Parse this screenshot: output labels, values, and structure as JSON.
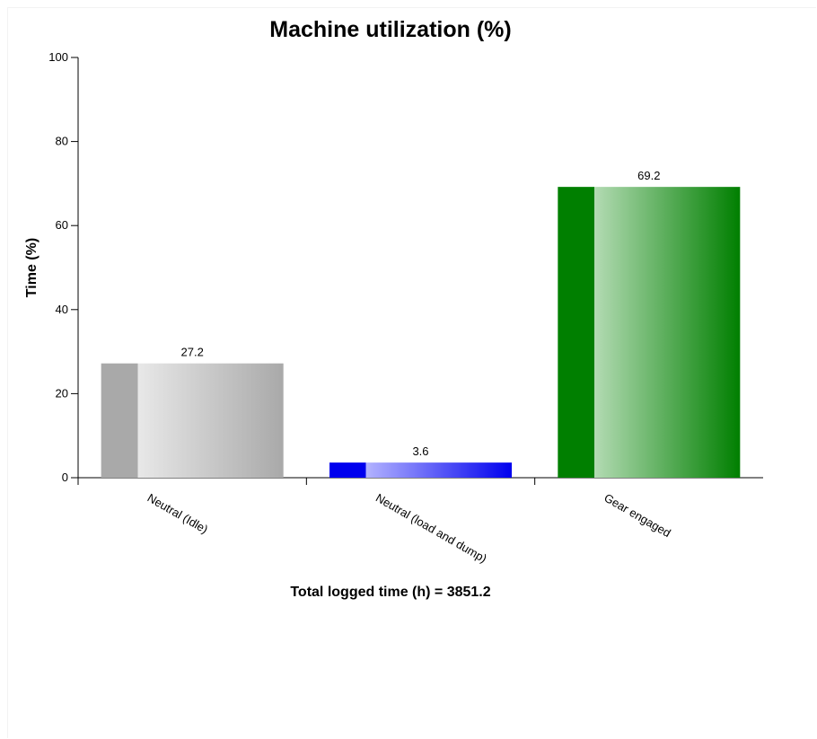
{
  "chart_data": {
    "type": "bar",
    "title": "Machine utilization (%)",
    "ylabel": "Time (%)",
    "xlabel": "Total logged time (h) = 3851.2",
    "categories": [
      "Neutral (Idle)",
      "Neutral (load and dump)",
      "Gear engaged"
    ],
    "values": [
      27.2,
      3.6,
      69.2
    ],
    "value_labels": [
      "27.2",
      "3.6",
      "69.2"
    ],
    "ylim": [
      0,
      100
    ],
    "yticks": [
      0,
      20,
      40,
      60,
      80,
      100
    ],
    "ytick_labels": [
      "0",
      "20",
      "40",
      "60",
      "80",
      "100"
    ],
    "grid": false,
    "legend": "none",
    "colors": [
      {
        "dark": "#a9a9a9",
        "light": "#e8e8e8"
      },
      {
        "dark": "#0000ee",
        "light": "#b3b3ff"
      },
      {
        "dark": "#007f00",
        "light": "#b3dbb3"
      }
    ]
  }
}
